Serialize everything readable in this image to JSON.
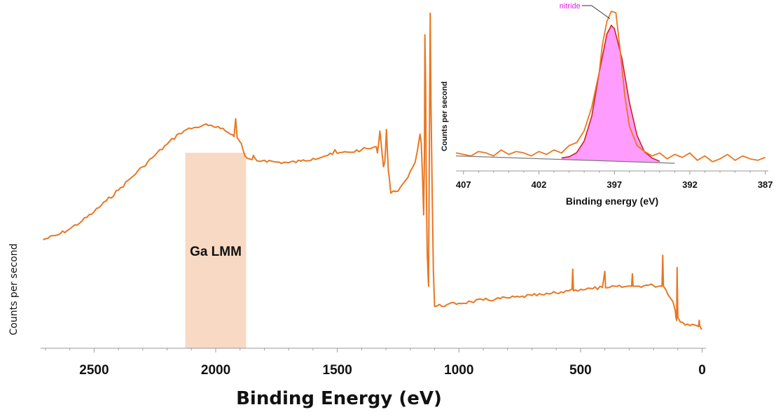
{
  "chart_data": [
    {
      "type": "line",
      "xlabel": "Binding Energy (eV)",
      "ylabel": "Counts per second",
      "xlim": [
        2720,
        -10
      ],
      "x_reversed": true,
      "xticks": [
        2500,
        2000,
        1500,
        1000,
        500,
        0
      ],
      "grid": false,
      "colors": {
        "line": "#e87722",
        "region": "#f8d9c4"
      },
      "highlight_region": {
        "x_start": 2125,
        "x_end": 1875,
        "label": "Ga LMM"
      },
      "series": [
        {
          "x": [
            2710,
            2650,
            2600,
            2550,
            2500,
            2450,
            2400,
            2350,
            2300,
            2250,
            2200,
            2150,
            2120,
            2080,
            2050,
            2030,
            2000,
            1980,
            1960,
            1940,
            1930,
            1925,
            1918,
            1912,
            1905,
            1900,
            1895,
            1888,
            1880,
            1870,
            1860,
            1850,
            1845,
            1838,
            1830,
            1800,
            1750,
            1700,
            1650,
            1600,
            1550,
            1520,
            1510,
            1500,
            1450,
            1400,
            1360,
            1340,
            1335,
            1330,
            1325,
            1320,
            1315,
            1310,
            1305,
            1302,
            1298,
            1295,
            1290,
            1285,
            1280,
            1260,
            1240,
            1220,
            1200,
            1180,
            1170,
            1160,
            1155,
            1150,
            1145,
            1142,
            1140,
            1137,
            1135,
            1132,
            1130,
            1125,
            1122,
            1118,
            1115,
            1110,
            1105,
            1100,
            1050,
            1000,
            950,
            900,
            850,
            800,
            750,
            700,
            650,
            600,
            550,
            535,
            532,
            529,
            520,
            500,
            450,
            410,
            400,
            397,
            394,
            380,
            320,
            290,
            287,
            284,
            270,
            220,
            200,
            165,
            162,
            159,
            150,
            120,
            110,
            108,
            105,
            103,
            100,
            90,
            60,
            30,
            20,
            15,
            12,
            10,
            8,
            5,
            2
          ],
          "y": [
            350,
            365,
            385,
            410,
            440,
            475,
            510,
            548,
            585,
            622,
            658,
            692,
            705,
            712,
            720,
            718,
            712,
            708,
            700,
            690,
            688,
            682,
            740,
            678,
            672,
            665,
            660,
            640,
            620,
            612,
            610,
            608,
            622,
            612,
            604,
            606,
            600,
            598,
            603,
            612,
            620,
            625,
            640,
            628,
            632,
            640,
            645,
            650,
            630,
            660,
            700,
            660,
            620,
            585,
            600,
            640,
            705,
            650,
            570,
            540,
            500,
            505,
            520,
            540,
            570,
            600,
            640,
            690,
            660,
            560,
            430,
            620,
            1010,
            850,
            600,
            400,
            300,
            200,
            600,
            1080,
            800,
            500,
            250,
            135,
            140,
            145,
            150,
            155,
            158,
            162,
            165,
            170,
            172,
            178,
            185,
            190,
            255,
            185,
            188,
            190,
            192,
            196,
            248,
            195,
            195,
            196,
            198,
            200,
            240,
            200,
            200,
            203,
            202,
            200,
            300,
            200,
            190,
            150,
            120,
            100,
            90,
            260,
            100,
            85,
            78,
            75,
            72,
            70,
            90,
            72,
            70,
            65,
            60
          ]
        }
      ]
    },
    {
      "type": "area",
      "xlabel": "Binding energy (eV)",
      "ylabel": "Counts per second",
      "xlim": [
        407.5,
        386.8
      ],
      "x_reversed": true,
      "xticks": [
        407,
        402,
        397,
        392,
        387
      ],
      "grid": false,
      "colors": {
        "raw": "#e87722",
        "fit": "#cc2222",
        "fill": "#ff9cff",
        "background": "#7a7a7a"
      },
      "annotation": {
        "text": "nitride",
        "x": 397.3,
        "y": 98
      },
      "series": [
        {
          "name": "raw",
          "x": [
            407.5,
            407,
            406.5,
            406,
            405.5,
            405,
            404.5,
            404,
            403.5,
            403,
            402.5,
            402,
            401.5,
            401,
            400.5,
            400,
            399.5,
            399,
            398.5,
            398,
            397.8,
            397.5,
            397.2,
            396.9,
            396.6,
            396.3,
            396,
            395.5,
            395,
            394.5,
            394,
            393.5,
            393,
            392.5,
            392,
            391.5,
            391,
            390.5,
            390,
            389.5,
            389,
            388.5,
            388,
            387.5,
            387
          ],
          "y": [
            7,
            6,
            5,
            8,
            7,
            5,
            9,
            6,
            8,
            7,
            5,
            8,
            6,
            9,
            7,
            12,
            14,
            22,
            38,
            62,
            80,
            96,
            103,
            102,
            75,
            45,
            25,
            12,
            8,
            5,
            7,
            3,
            6,
            4,
            7,
            2,
            5,
            1,
            3,
            6,
            2,
            5,
            3,
            2,
            4
          ]
        },
        {
          "name": "fit",
          "x": [
            400.5,
            400,
            399.5,
            399,
            398.5,
            398,
            397.5,
            397.2,
            397,
            396.5,
            396,
            395.5,
            395,
            394.5,
            394
          ],
          "y": [
            1,
            2,
            5,
            13,
            30,
            60,
            86,
            92,
            90,
            70,
            40,
            18,
            7,
            3,
            1
          ]
        },
        {
          "name": "background",
          "x": [
            407.5,
            393
          ],
          "y": [
            5,
            0
          ]
        }
      ]
    }
  ]
}
